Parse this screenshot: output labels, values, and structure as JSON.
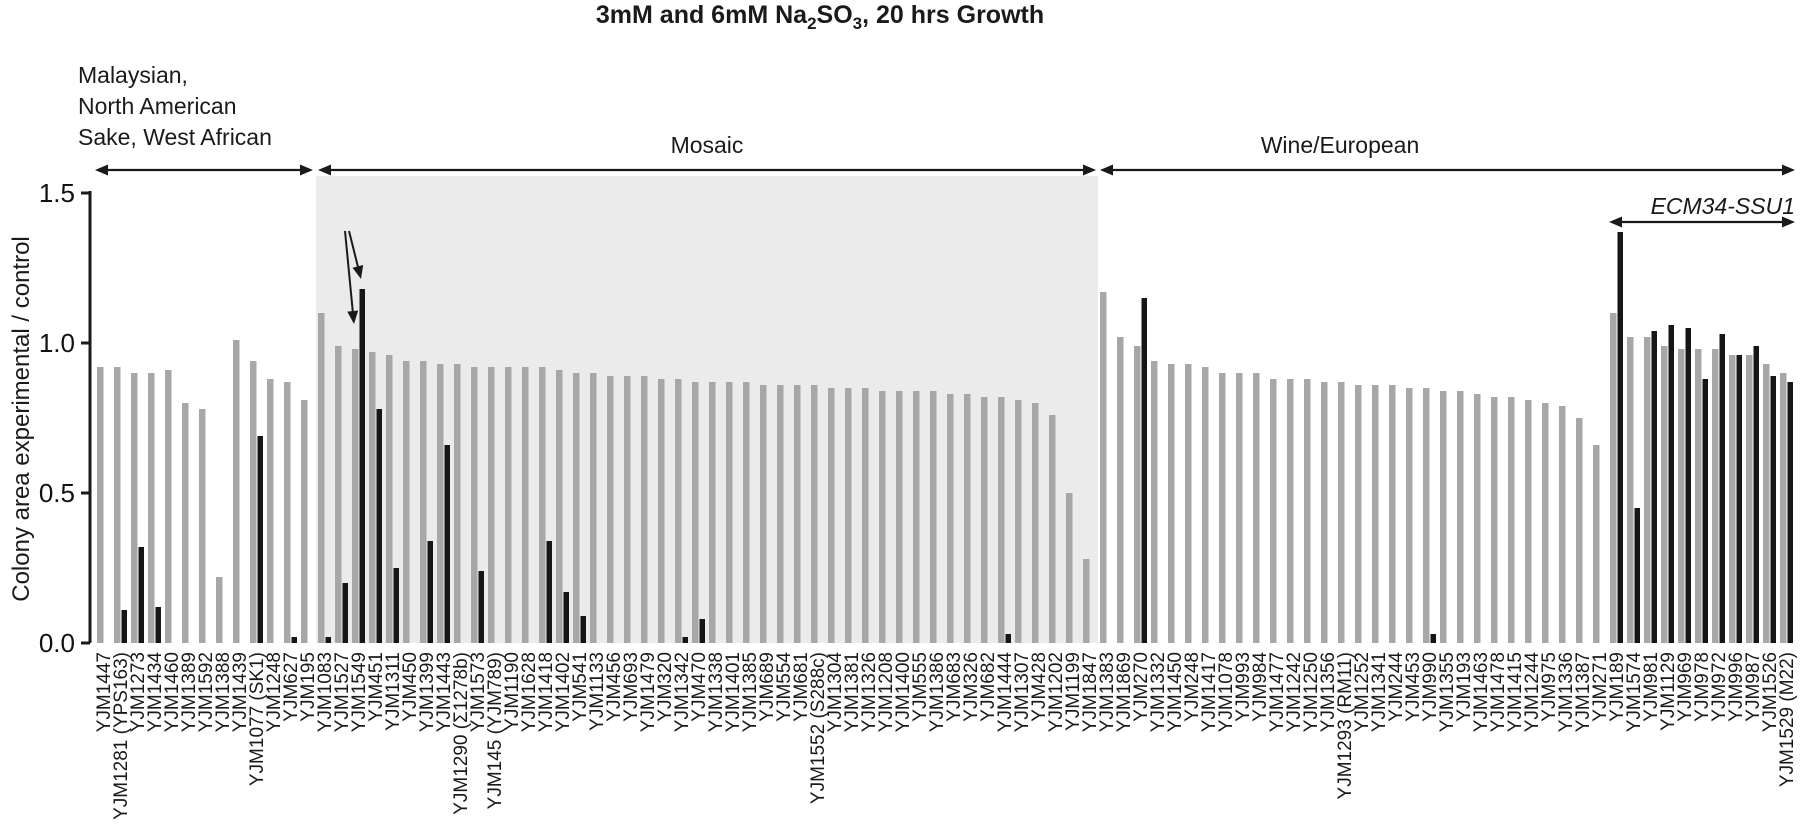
{
  "title": {
    "part1": "3mM and 6mM Na",
    "sub1": "2",
    "part2": "SO",
    "sub2": "3",
    "part3": ", 20 hrs Growth"
  },
  "chart_data": {
    "type": "bar",
    "title": "3mM and 6mM Na2SO3, 20 hrs Growth",
    "ylabel": "Colony area experimental / control",
    "ylim": [
      0,
      1.5
    ],
    "y_axis": {
      "ticks": [
        {
          "value": 0.0,
          "label": "0.0"
        },
        {
          "value": 0.5,
          "label": "0.5"
        },
        {
          "value": 1.0,
          "label": "1.0"
        },
        {
          "value": 1.5,
          "label": "1.5"
        }
      ]
    },
    "grid": false,
    "legend": "none",
    "series": [
      {
        "name": "3mM Na2SO3",
        "color_key": "bar_3mM"
      },
      {
        "name": "6mM Na2SO3",
        "color_key": "bar_6mM"
      }
    ],
    "colors": {
      "bar_3mM": "#a7a7a7",
      "bar_6mM": "#161616",
      "mosaic_shade": "#ebebeb",
      "axis": "#1a1a1a"
    },
    "strain_fields": [
      "name",
      "value_3mM",
      "value_6mM"
    ],
    "groups": [
      {
        "label": "Malaysian, North American Sake, West African",
        "label_lines": [
          "Malaysian,",
          "North American",
          "Sake, West African"
        ],
        "shaded": false,
        "strains": [
          [
            "YJM1447",
            0.92,
            0
          ],
          [
            "YJM1281 (YPS163)",
            0.92,
            0.11
          ],
          [
            "YJM1273",
            0.9,
            0.32
          ],
          [
            "YJM1434",
            0.9,
            0.12
          ],
          [
            "YJM1460",
            0.91,
            0
          ],
          [
            "YJM1389",
            0.8,
            0
          ],
          [
            "YJM1592",
            0.78,
            0
          ],
          [
            "YJM1388",
            0.22,
            0
          ],
          [
            "YJM1439",
            1.01,
            0
          ],
          [
            "YJM1077 (SK1)",
            0.94,
            0.69
          ],
          [
            "YJM1248",
            0.88,
            0
          ],
          [
            "YJM627",
            0.87,
            0.02
          ],
          [
            "YJM195",
            0.81,
            0
          ]
        ]
      },
      {
        "label": "Mosaic",
        "shaded": true,
        "strains": [
          [
            "YJM1083",
            1.1,
            0.02
          ],
          [
            "YJM1527",
            0.99,
            0.2
          ],
          [
            "YJM1549",
            0.98,
            1.18
          ],
          [
            "YJM451",
            0.97,
            0.78
          ],
          [
            "YJM1311",
            0.96,
            0.25
          ],
          [
            "YJM450",
            0.94,
            0
          ],
          [
            "YJM1399",
            0.94,
            0.34
          ],
          [
            "YJM1443",
            0.93,
            0.66
          ],
          [
            "YJM1290 (Σ1278b)",
            0.93,
            0
          ],
          [
            "YJM1573",
            0.92,
            0.24
          ],
          [
            "YJM145 (YJM789)",
            0.92,
            0
          ],
          [
            "YJM1190",
            0.92,
            0
          ],
          [
            "YJM1628",
            0.92,
            0
          ],
          [
            "YJM1418",
            0.92,
            0.34
          ],
          [
            "YJM1402",
            0.91,
            0.17
          ],
          [
            "YJM541",
            0.9,
            0.09
          ],
          [
            "YJM1133",
            0.9,
            0
          ],
          [
            "YJM456",
            0.89,
            0
          ],
          [
            "YJM693",
            0.89,
            0
          ],
          [
            "YJM1479",
            0.89,
            0
          ],
          [
            "YJM320",
            0.88,
            0
          ],
          [
            "YJM1342",
            0.88,
            0.02
          ],
          [
            "YJM470",
            0.87,
            0.08
          ],
          [
            "YJM1338",
            0.87,
            0
          ],
          [
            "YJM1401",
            0.87,
            0
          ],
          [
            "YJM1385",
            0.87,
            0
          ],
          [
            "YJM689",
            0.86,
            0
          ],
          [
            "YJM554",
            0.86,
            0
          ],
          [
            "YJM681",
            0.86,
            0
          ],
          [
            "YJM1552 (S288c)",
            0.86,
            0
          ],
          [
            "YJM1304",
            0.85,
            0
          ],
          [
            "YJM1381",
            0.85,
            0
          ],
          [
            "YJM1326",
            0.85,
            0
          ],
          [
            "YJM1208",
            0.84,
            0
          ],
          [
            "YJM1400",
            0.84,
            0
          ],
          [
            "YJM555",
            0.84,
            0
          ],
          [
            "YJM1386",
            0.84,
            0
          ],
          [
            "YJM683",
            0.83,
            0
          ],
          [
            "YJM326",
            0.83,
            0
          ],
          [
            "YJM682",
            0.82,
            0
          ],
          [
            "YJM1444",
            0.82,
            0.03
          ],
          [
            "YJM1307",
            0.81,
            0
          ],
          [
            "YJM428",
            0.8,
            0
          ],
          [
            "YJM1202",
            0.76,
            0
          ],
          [
            "YJM1199",
            0.5,
            0
          ],
          [
            "YJM1847",
            0.28,
            0
          ]
        ]
      },
      {
        "label": "Wine/European",
        "shaded": false,
        "strains": [
          [
            "YJM1383",
            1.17,
            0
          ],
          [
            "YJM1869",
            1.02,
            0
          ],
          [
            "YJM270",
            0.99,
            1.15
          ],
          [
            "YJM1332",
            0.94,
            0
          ],
          [
            "YJM1450",
            0.93,
            0
          ],
          [
            "YJM248",
            0.93,
            0
          ],
          [
            "YJM1417",
            0.92,
            0
          ],
          [
            "YJM1078",
            0.9,
            0
          ],
          [
            "YJM993",
            0.9,
            0
          ],
          [
            "YJM984",
            0.9,
            0
          ],
          [
            "YJM1477",
            0.88,
            0
          ],
          [
            "YJM1242",
            0.88,
            0
          ],
          [
            "YJM1250",
            0.88,
            0
          ],
          [
            "YJM1356",
            0.87,
            0
          ],
          [
            "YJM1293 (RM11)",
            0.87,
            0
          ],
          [
            "YJM1252",
            0.86,
            0
          ],
          [
            "YJM1341",
            0.86,
            0
          ],
          [
            "YJM244",
            0.86,
            0
          ],
          [
            "YJM453",
            0.85,
            0
          ],
          [
            "YJM990",
            0.85,
            0.03
          ],
          [
            "YJM1355",
            0.84,
            0
          ],
          [
            "YJM193",
            0.84,
            0
          ],
          [
            "YJM1463",
            0.83,
            0
          ],
          [
            "YJM1478",
            0.82,
            0
          ],
          [
            "YJM1415",
            0.82,
            0
          ],
          [
            "YJM1244",
            0.81,
            0
          ],
          [
            "YJM975",
            0.8,
            0
          ],
          [
            "YJM1336",
            0.79,
            0
          ],
          [
            "YJM1387",
            0.75,
            0
          ],
          [
            "YJM271",
            0.66,
            0
          ],
          [
            "YJM189",
            1.1,
            1.37
          ],
          [
            "YJM1574",
            1.02,
            0.45
          ],
          [
            "YJM981",
            1.02,
            1.04
          ],
          [
            "YJM1129",
            0.99,
            1.06
          ],
          [
            "YJM969",
            0.98,
            1.05
          ],
          [
            "YJM978",
            0.98,
            0.88
          ],
          [
            "YJM972",
            0.98,
            1.03
          ],
          [
            "YJM996",
            0.96,
            0.96
          ],
          [
            "YJM987",
            0.96,
            0.99
          ],
          [
            "YJM1526",
            0.93,
            0.89
          ],
          [
            "YJM1529 (M22)",
            0.9,
            0.87
          ]
        ]
      }
    ],
    "annotations": [
      {
        "text": "ECM34-SSU1",
        "side": "left",
        "points_to": [
          "YJM1527",
          "YJM1549"
        ]
      },
      {
        "text": "ECM34-SSU1",
        "side": "right",
        "span": [
          "YJM189",
          "YJM1529 (M22)"
        ]
      }
    ]
  }
}
